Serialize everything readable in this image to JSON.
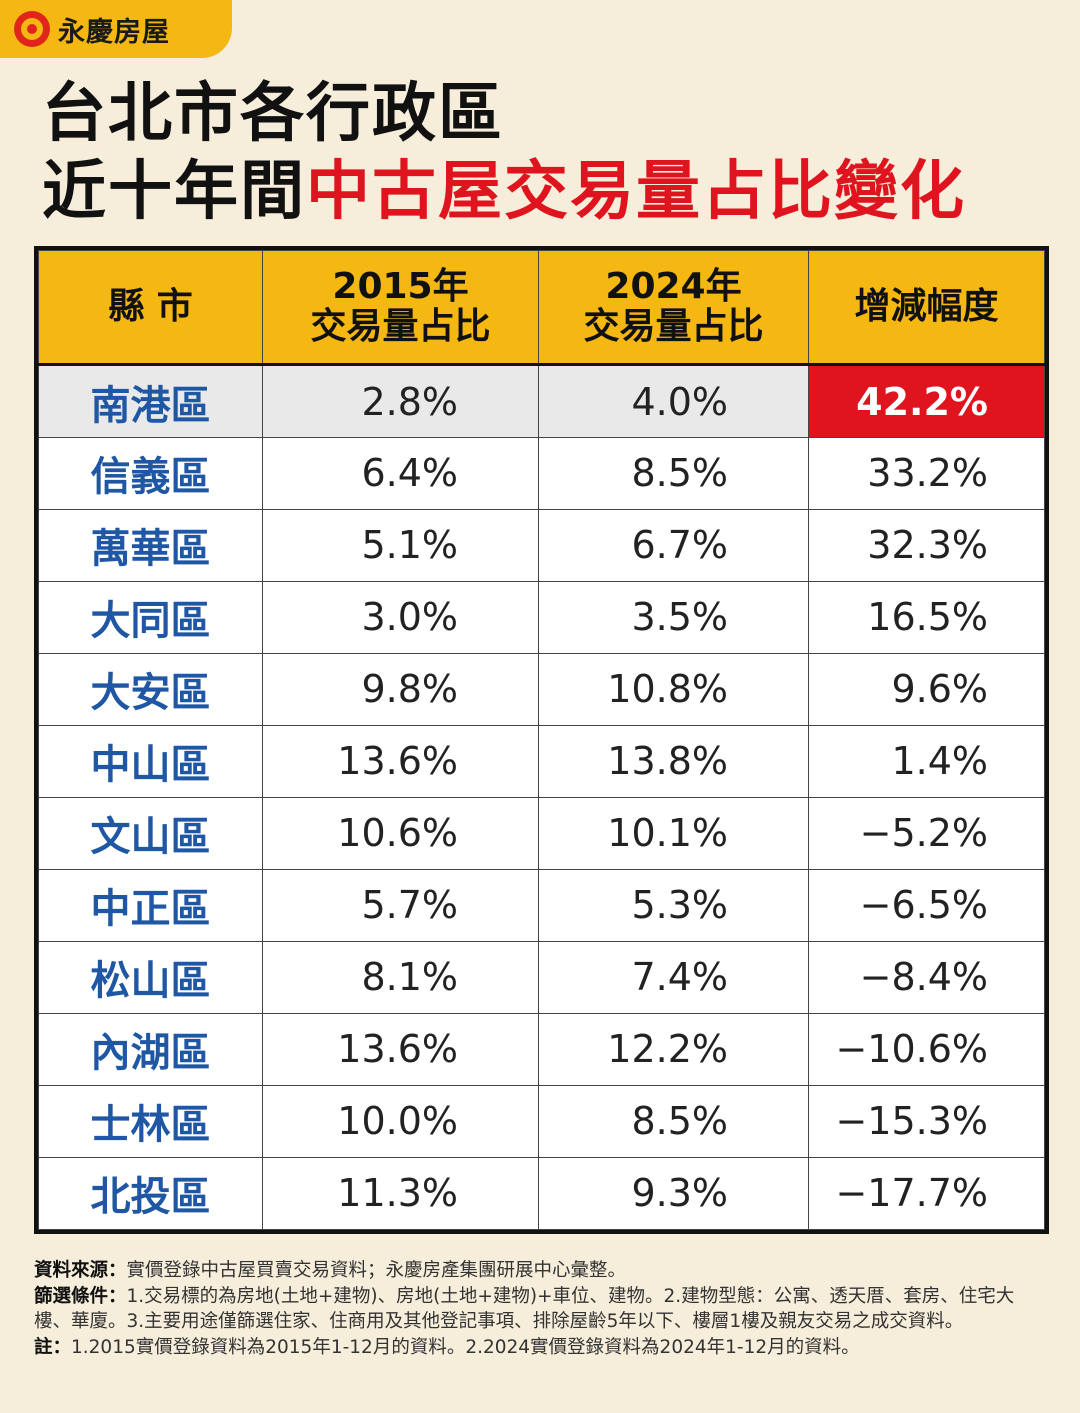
{
  "brand": {
    "name": "永慶房屋"
  },
  "title": {
    "line1": "台北市各行政區",
    "line2_black": "近十年間",
    "line2_red": "中古屋交易量占比變化"
  },
  "chart_data": {
    "type": "table",
    "headers": {
      "district": "縣 市",
      "y2015_line1": "2015年",
      "y2015_line2": "交易量占比",
      "y2024_line1": "2024年",
      "y2024_line2": "交易量占比",
      "change": "增減幅度"
    },
    "rows": [
      {
        "district": "南港區",
        "share_2015": "2.8%",
        "share_2024": "4.0%",
        "change": "42.2%",
        "highlight": true
      },
      {
        "district": "信義區",
        "share_2015": "6.4%",
        "share_2024": "8.5%",
        "change": "33.2%"
      },
      {
        "district": "萬華區",
        "share_2015": "5.1%",
        "share_2024": "6.7%",
        "change": "32.3%"
      },
      {
        "district": "大同區",
        "share_2015": "3.0%",
        "share_2024": "3.5%",
        "change": "16.5%"
      },
      {
        "district": "大安區",
        "share_2015": "9.8%",
        "share_2024": "10.8%",
        "change": "9.6%"
      },
      {
        "district": "中山區",
        "share_2015": "13.6%",
        "share_2024": "13.8%",
        "change": "1.4%"
      },
      {
        "district": "文山區",
        "share_2015": "10.6%",
        "share_2024": "10.1%",
        "change": "−5.2%"
      },
      {
        "district": "中正區",
        "share_2015": "5.7%",
        "share_2024": "5.3%",
        "change": "−6.5%"
      },
      {
        "district": "松山區",
        "share_2015": "8.1%",
        "share_2024": "7.4%",
        "change": "−8.4%"
      },
      {
        "district": "內湖區",
        "share_2015": "13.6%",
        "share_2024": "12.2%",
        "change": "−10.6%"
      },
      {
        "district": "士林區",
        "share_2015": "10.0%",
        "share_2024": "8.5%",
        "change": "−15.3%"
      },
      {
        "district": "北投區",
        "share_2015": "11.3%",
        "share_2024": "9.3%",
        "change": "−17.7%"
      }
    ]
  },
  "notes": {
    "source_label": "資料來源：",
    "source_text": "實價登錄中古屋買賣交易資料；永慶房產集團研展中心彙整。",
    "filter_label": "篩選條件：",
    "filter_text": "1.交易標的為房地(土地+建物)、房地(土地+建物)+車位、建物。2.建物型態：公寓、透天厝、套房、住宅大樓、華廈。3.主要用途僅篩選住家、住商用及其他登記事項、排除屋齡5年以下、樓層1樓及親友交易之成交資料。",
    "note_label": "註：",
    "note_text": "1.2015實價登錄資料為2015年1-12月的資料。2.2024實價登錄資料為2024年1-12月的資料。"
  },
  "colors": {
    "background": "#f6eedb",
    "header_yellow": "#f5b812",
    "highlight_red": "#e0141e",
    "district_blue": "#1f57a5",
    "alt_row_gray": "#e9e9e9"
  }
}
